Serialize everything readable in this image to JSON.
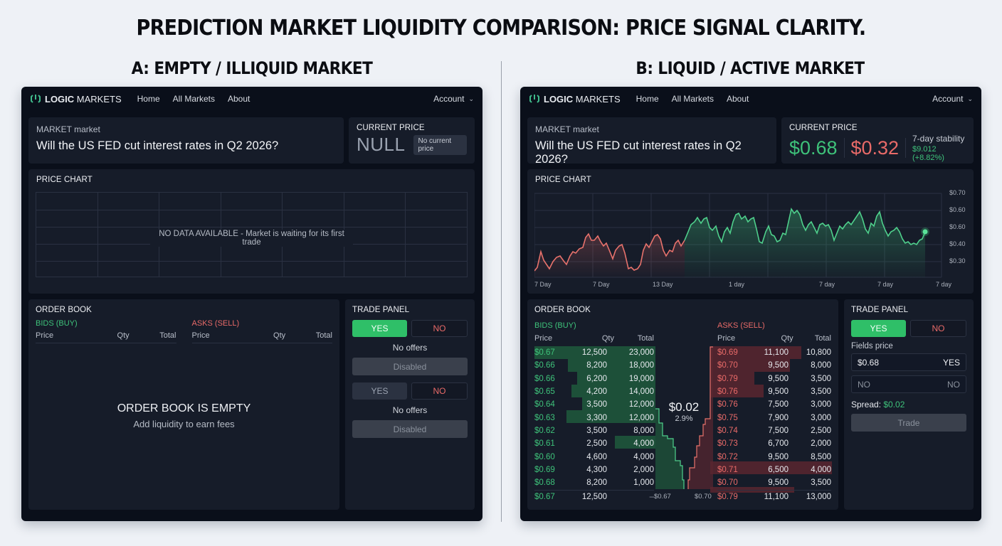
{
  "title": "PREDICTION MARKET LIQUIDITY COMPARISON: PRICE SIGNAL CLARITY.",
  "panels": {
    "a": {
      "heading": "A: EMPTY / ILLIQUID MARKET",
      "nav": {
        "brand_bold": "LOGIC",
        "brand_rest": " MARKETS",
        "links": [
          "Home",
          "All Markets",
          "About"
        ],
        "account": "Account"
      },
      "market": {
        "label": "MARKET market",
        "question": "Will the US FED cut interest rates in Q2 2026?"
      },
      "current_price": {
        "title": "CURRENT PRICE",
        "value": "NULL",
        "badge": "No current price"
      },
      "chart": {
        "title": "PRICE CHART",
        "empty_text": "NO DATA AVAILABLE - Market is waiting for its first trade"
      },
      "order_book": {
        "title": "ORDER BOOK",
        "bids_label": "BIDS (BUY)",
        "asks_label": "ASKS (SELL)",
        "columns": [
          "Price",
          "Qty",
          "Total"
        ],
        "empty_title": "ORDER BOOK IS EMPTY",
        "empty_sub": "Add liquidity to earn fees"
      },
      "trade": {
        "title": "TRADE PANEL",
        "yes": "YES",
        "no": "NO",
        "no_offers_1": "No offers",
        "disabled_1": "Disabled",
        "yes2": "YES",
        "no2": "NO",
        "no_offers_2": "No offers",
        "disabled_2": "Disabled"
      }
    },
    "b": {
      "heading": "B: LIQUID / ACTIVE MARKET",
      "nav": {
        "brand_bold": "LOGIC",
        "brand_rest": " MARKETS",
        "links": [
          "Home",
          "All Markets",
          "About"
        ],
        "account": "Account"
      },
      "market": {
        "label": "MARKET market",
        "question": "Will the US FED cut interest rates in Q2 2026?"
      },
      "current_price": {
        "title": "CURRENT PRICE",
        "yes_price": "$0.68",
        "no_price": "$0.32",
        "stability_label": "7-day stability",
        "stability_value": "$9.012 (+8.82%)"
      },
      "chart": {
        "title": "PRICE CHART",
        "x_labels": [
          "7 Day",
          "7 Day",
          "13 Day",
          "1 day",
          "7 day",
          "7 day",
          "7 day"
        ],
        "y_labels": [
          "$0.70",
          "$0.60",
          "$0.60",
          "$0.40",
          "$0.30"
        ]
      },
      "order_book": {
        "title": "ORDER BOOK",
        "bids_label": "BIDS (BUY)",
        "asks_label": "ASKS (SELL)",
        "columns": [
          "Price",
          "Qty",
          "Total"
        ],
        "bids": [
          {
            "price": "$0.67",
            "qty": "12,500",
            "total": "23,000"
          },
          {
            "price": "$0.66",
            "qty": "8,200",
            "total": "18,000"
          },
          {
            "price": "$0.66",
            "qty": "6,200",
            "total": "19,000"
          },
          {
            "price": "$0.65",
            "qty": "4,200",
            "total": "14,000"
          },
          {
            "price": "$0.64",
            "qty": "3,500",
            "total": "12,000"
          },
          {
            "price": "$0.63",
            "qty": "3,300",
            "total": "12,000"
          },
          {
            "price": "$0.62",
            "qty": "3,500",
            "total": "8,000"
          },
          {
            "price": "$0.61",
            "qty": "2,500",
            "total": "4,000"
          },
          {
            "price": "$0.60",
            "qty": "4,600",
            "total": "4,000"
          },
          {
            "price": "$0.69",
            "qty": "4,300",
            "total": "2,000"
          },
          {
            "price": "$0.68",
            "qty": "8,200",
            "total": "1,000"
          }
        ],
        "asks": [
          {
            "price": "$0.69",
            "qty": "11,100",
            "total": "10,800"
          },
          {
            "price": "$0.70",
            "qty": "9,500",
            "total": "8,000"
          },
          {
            "price": "$0.79",
            "qty": "9,500",
            "total": "3,500"
          },
          {
            "price": "$0.76",
            "qty": "9,500",
            "total": "3,500"
          },
          {
            "price": "$0.76",
            "qty": "7,500",
            "total": "3,000"
          },
          {
            "price": "$0.75",
            "qty": "7,900",
            "total": "3,000"
          },
          {
            "price": "$0.74",
            "qty": "7,500",
            "total": "2,500"
          },
          {
            "price": "$0.73",
            "qty": "6,700",
            "total": "2,000"
          },
          {
            "price": "$0.72",
            "qty": "9,500",
            "total": "8,500"
          },
          {
            "price": "$0.71",
            "qty": "6,500",
            "total": "4,000"
          },
          {
            "price": "$0.70",
            "qty": "9,500",
            "total": "3,500"
          }
        ],
        "footer_bid": {
          "price": "$0.67",
          "qty": "12,500",
          "total": "–"
        },
        "footer_ask": {
          "price": "$0.79",
          "qty": "11,100",
          "total": "13,000"
        },
        "depth_bid_label": "$0.67",
        "depth_ask_label": "$0.70",
        "spread_value": "$0.02",
        "spread_pct": "2.9%"
      },
      "trade": {
        "title": "TRADE PANEL",
        "yes": "YES",
        "no": "NO",
        "fields_label": "Fields price",
        "price_value": "$0.68",
        "price_suffix": "YES",
        "no_placeholder": "NO",
        "no_suffix": "NO",
        "spread_label": "Spread: ",
        "spread_value": "$0.02",
        "trade_button": "Trade"
      }
    }
  },
  "colors": {
    "green": "#3ec27a",
    "red": "#e86a68",
    "panel": "#161c29",
    "app_bg": "#0a0f1a",
    "page_bg": "#eef1f6"
  }
}
